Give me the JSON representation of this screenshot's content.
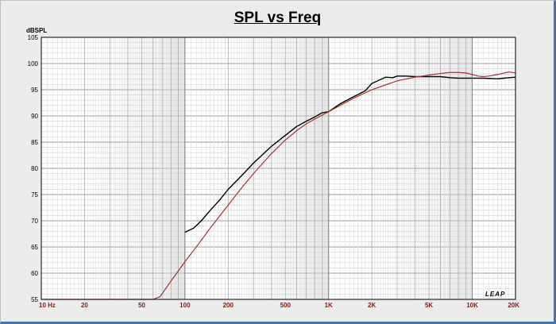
{
  "chart_data": {
    "type": "line",
    "title": "SPL vs Freq",
    "ylabel": "dBSPL",
    "xlabel": "",
    "x_scale": "log",
    "xlim": [
      10,
      20000
    ],
    "ylim": [
      55,
      105
    ],
    "grid": true,
    "y_ticks": [
      "55",
      "60",
      "65",
      "70",
      "75",
      "80",
      "85",
      "90",
      "95",
      "100",
      "105"
    ],
    "x_ticks": [
      {
        "value": 10,
        "label": "10 Hz"
      },
      {
        "value": 20,
        "label": "20"
      },
      {
        "value": 50,
        "label": "50"
      },
      {
        "value": 100,
        "label": "100"
      },
      {
        "value": 200,
        "label": "200"
      },
      {
        "value": 500,
        "label": "500"
      },
      {
        "value": 1000,
        "label": "1K"
      },
      {
        "value": 2000,
        "label": "2K"
      },
      {
        "value": 5000,
        "label": "5K"
      },
      {
        "value": 10000,
        "label": "10K"
      },
      {
        "value": 20000,
        "label": "20K"
      }
    ],
    "brand_mark": "LEAP",
    "series": [
      {
        "color": "#000000",
        "x": [
          100,
          115,
          130,
          150,
          175,
          200,
          250,
          300,
          400,
          500,
          600,
          700,
          800,
          900,
          1000,
          1200,
          1500,
          1800,
          2000,
          2200,
          2500,
          2800,
          3000,
          3500,
          4000,
          5000,
          6000,
          7000,
          8000,
          10000,
          12000,
          15000,
          18000,
          20000
        ],
        "y": [
          67.8,
          68.6,
          70.0,
          72.0,
          74.0,
          76.0,
          78.7,
          81.0,
          84.2,
          86.3,
          88.0,
          89.0,
          89.8,
          90.6,
          90.8,
          92.3,
          93.7,
          94.8,
          96.2,
          96.7,
          97.4,
          97.3,
          97.6,
          97.6,
          97.5,
          97.5,
          97.5,
          97.3,
          97.2,
          97.2,
          97.2,
          97.1,
          97.3,
          97.4
        ]
      },
      {
        "color": "#b03030",
        "x": [
          10,
          20,
          40,
          60,
          67,
          80,
          100,
          120,
          150,
          200,
          250,
          300,
          400,
          500,
          600,
          700,
          800,
          1000,
          1200,
          1500,
          2000,
          3000,
          4000,
          5000,
          6000,
          7000,
          8000,
          9000,
          10000,
          11000,
          12000,
          13000,
          15000,
          18000,
          20000
        ],
        "y": [
          55.0,
          55.0,
          55.0,
          55.0,
          55.5,
          58.5,
          62.2,
          65.0,
          68.6,
          73.0,
          76.4,
          79.0,
          82.8,
          85.4,
          87.2,
          88.5,
          89.4,
          90.8,
          92.0,
          93.4,
          95.0,
          96.7,
          97.4,
          97.8,
          98.1,
          98.3,
          98.3,
          98.2,
          97.9,
          97.6,
          97.5,
          97.6,
          97.9,
          98.4,
          98.2
        ]
      }
    ]
  }
}
